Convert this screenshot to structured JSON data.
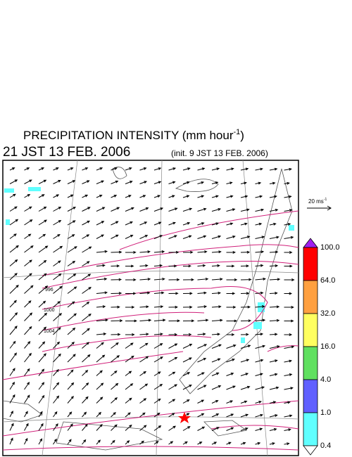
{
  "header": {
    "title": "PRECIPITATION INTENSITY (mm hour",
    "title_exponent": "-1",
    "title_close": ")",
    "valid_time": "21 JST 13 FEB. 2006",
    "init_time": "(init. 9 JST 13 FEB. 2006)"
  },
  "wind_scale": {
    "label": "20 ms",
    "exponent": "-1"
  },
  "isobar_labels": [
    "996",
    "1000",
    "1004"
  ],
  "legend": {
    "labels": [
      "100.0",
      "64.0",
      "32.0",
      "16.0",
      "4.0",
      "1.0",
      "0.4"
    ],
    "colors": [
      "#a020f0",
      "#ff0000",
      "#ffa040",
      "#ffff60",
      "#60e060",
      "#6060ff",
      "#60ffff",
      "#ffffff"
    ]
  }
}
